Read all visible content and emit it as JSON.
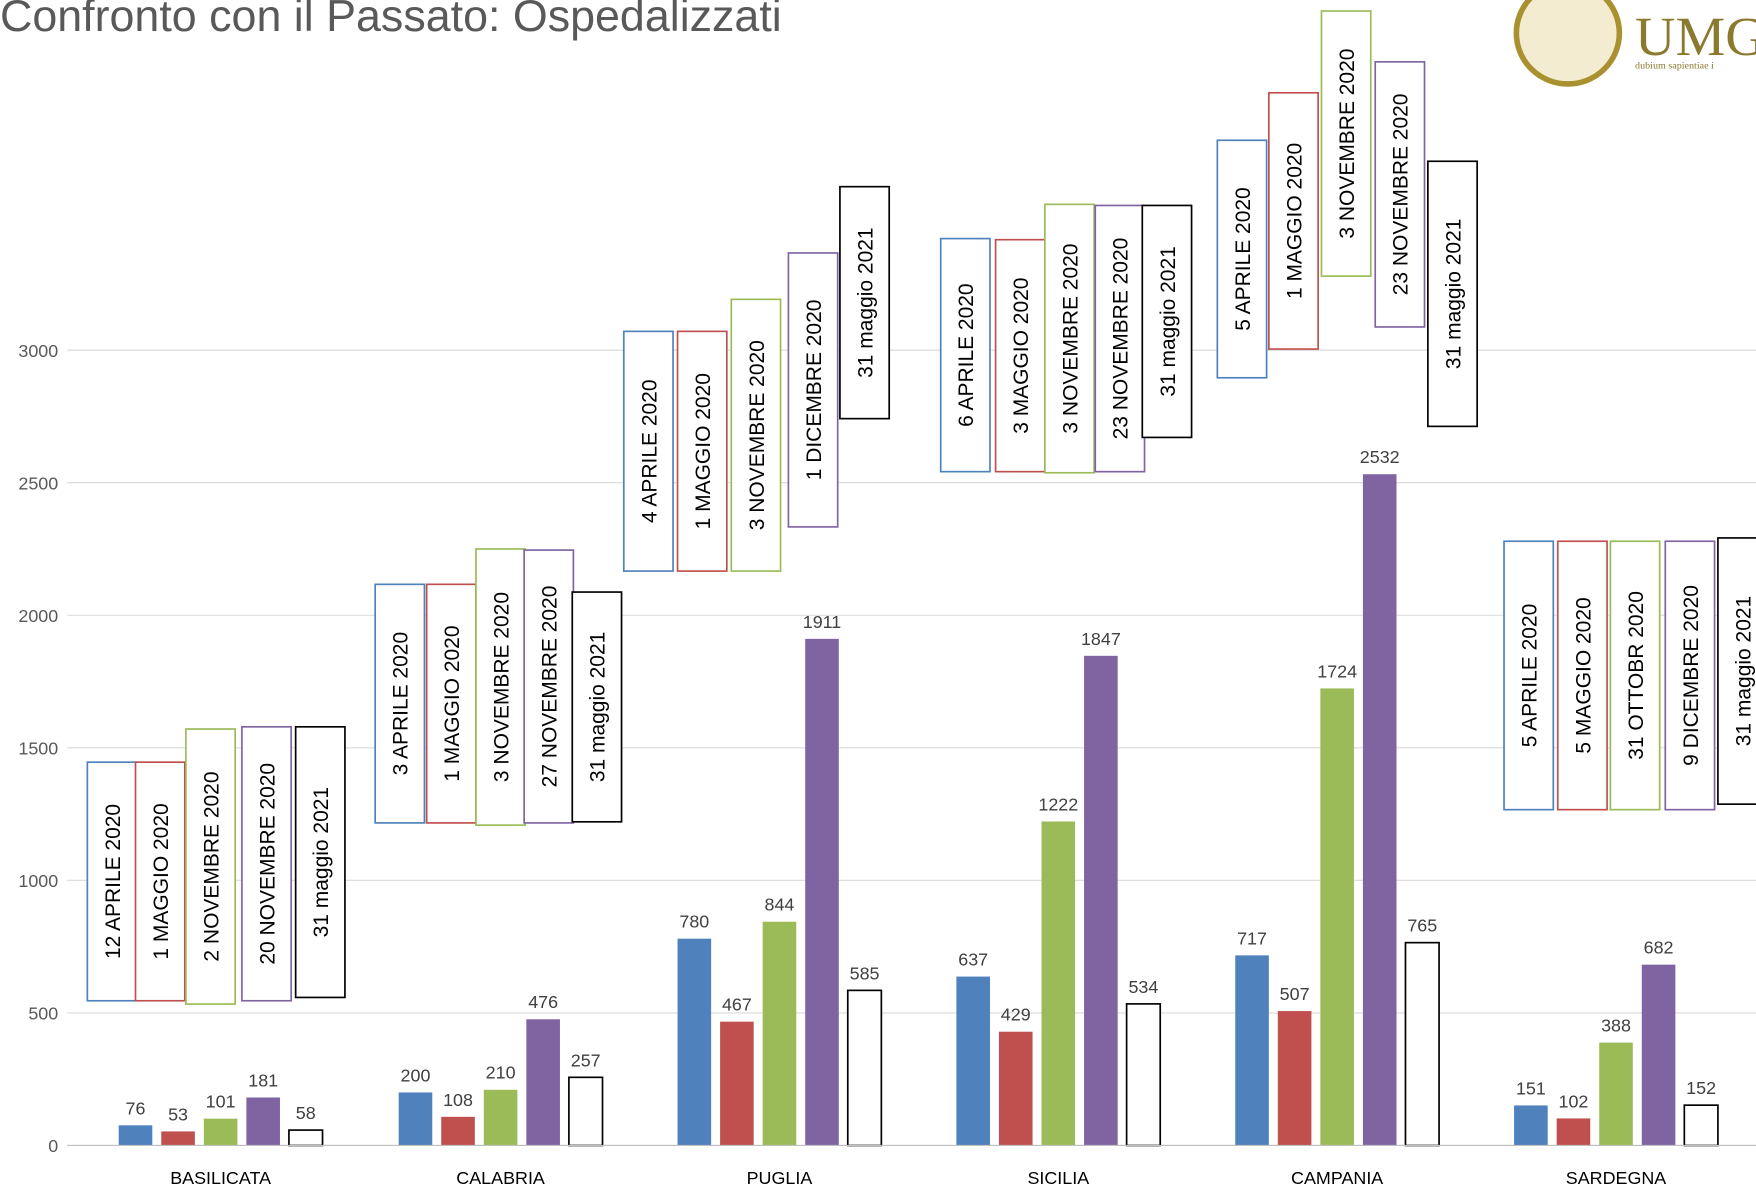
{
  "chart_data": {
    "type": "bar",
    "title": "Confronto con il Passato: Ospedalizzati",
    "categories": [
      "BASILICATA",
      "CALABRIA",
      "PUGLIA",
      "SICILIA",
      "CAMPANIA",
      "SARDEGNA"
    ],
    "series": [
      {
        "color": "#4f81bd",
        "values": [
          76,
          200,
          780,
          637,
          717,
          151
        ]
      },
      {
        "color": "#c0504d",
        "values": [
          53,
          108,
          467,
          429,
          507,
          102
        ]
      },
      {
        "color": "#9bbb59",
        "values": [
          101,
          210,
          844,
          1222,
          1724,
          388
        ]
      },
      {
        "color": "#8064a2",
        "values": [
          181,
          476,
          1911,
          1847,
          2532,
          682
        ]
      },
      {
        "color": "#ffffff",
        "values": [
          58,
          257,
          585,
          534,
          765,
          152
        ]
      }
    ],
    "date_labels": [
      [
        "12 APRILE 2020",
        "1  MAGGIO 2020",
        "2 NOVEMBRE 2020",
        "20 NOVEMBRE 2020",
        "31 maggio 2021"
      ],
      [
        "3 APRILE 2020",
        "1  MAGGIO 2020",
        "3 NOVEMBRE 2020",
        "27 NOVEMBRE 2020",
        "31 maggio  2021"
      ],
      [
        "4 APRILE 2020",
        "1  MAGGIO 2020",
        "3 NOVEMBRE 2020",
        "1 DICEMBRE 2020",
        "31 maggio 2021"
      ],
      [
        "6 APRILE 2020",
        "3  MAGGIO 2020",
        "3 NOVEMBRE 2020",
        "23 NOVEMBRE 2020",
        "31 maggio 2021"
      ],
      [
        "5 APRILE 2020",
        "1  MAGGIO 2020",
        "3 NOVEMBRE 2020",
        "23 NOVEMBRE 2020",
        "31 maggio 2021"
      ],
      [
        "5 APRILE 2020",
        "5  MAGGIO 2020",
        "31 OTTOBR 2020",
        "9 DICEMBRE 2020",
        "31 maggio 2021"
      ]
    ],
    "ylim": [
      0,
      3000
    ],
    "yticks": [
      0,
      500,
      1000,
      1500,
      2000,
      2500,
      3000
    ],
    "grid": true
  },
  "logo": {
    "text": "UMG",
    "motto": "dubium sapientiae i"
  }
}
